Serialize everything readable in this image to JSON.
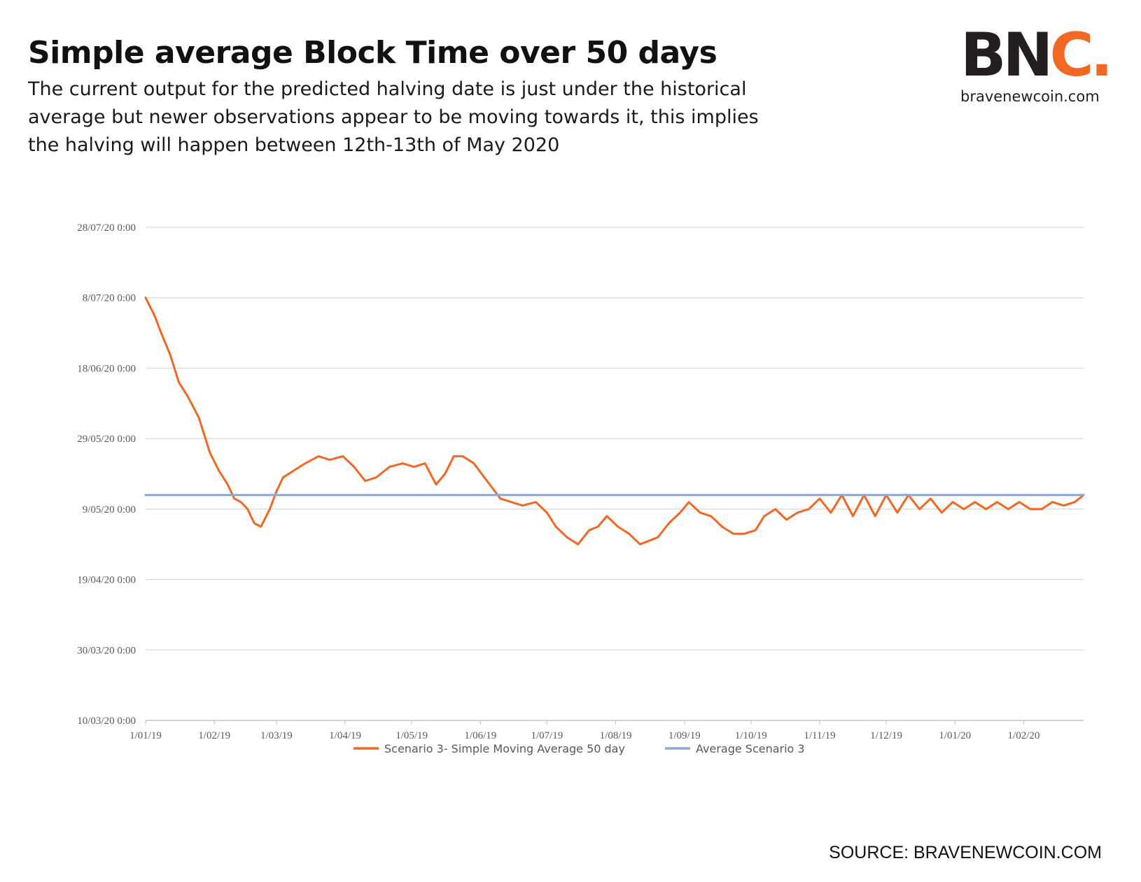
{
  "header": {
    "title": "Simple average Block Time over 50 days",
    "subtitle": "The current output for the predicted halving date is just under the historical average but newer observations appear to be moving towards it, this implies the halving will happen between 12th-13th of May 2020"
  },
  "logo": {
    "mark_dark": "BN",
    "mark_accent": "C.",
    "url": "bravenewcoin.com"
  },
  "source": "SOURCE: BRAVENEWCOIN.COM",
  "chart_data": {
    "type": "line",
    "title": "",
    "xlabel": "",
    "ylabel": "",
    "grid": true,
    "legend_position": "bottom",
    "x_range": [
      "2019-01-01",
      "2020-02-28"
    ],
    "y_range": [
      "2020-03-10",
      "2020-07-28"
    ],
    "x_ticks": [
      "1/01/19",
      "1/02/19",
      "1/03/19",
      "1/04/19",
      "1/05/19",
      "1/06/19",
      "1/07/19",
      "1/08/19",
      "1/09/19",
      "1/10/19",
      "1/11/19",
      "1/12/19",
      "1/01/20",
      "1/02/20"
    ],
    "y_ticks": [
      "10/03/20 0:00",
      "30/03/20 0:00",
      "19/04/20 0:00",
      "9/05/20 0:00",
      "29/05/20 0:00",
      "18/06/20 0:00",
      "8/07/20 0:00",
      "28/07/20 0:00"
    ],
    "series": [
      {
        "name": "Scenario 3- Simple Moving Average 50 day",
        "color": "#f26722",
        "points": [
          [
            "2019-01-01",
            "2020-07-08"
          ],
          [
            "2019-01-05",
            "2020-07-03"
          ],
          [
            "2019-01-08",
            "2020-06-28"
          ],
          [
            "2019-01-12",
            "2020-06-22"
          ],
          [
            "2019-01-16",
            "2020-06-14"
          ],
          [
            "2019-01-20",
            "2020-06-10"
          ],
          [
            "2019-01-25",
            "2020-06-04"
          ],
          [
            "2019-01-30",
            "2020-05-25"
          ],
          [
            "2019-02-03",
            "2020-05-20"
          ],
          [
            "2019-02-07",
            "2020-05-16"
          ],
          [
            "2019-02-10",
            "2020-05-12"
          ],
          [
            "2019-02-13",
            "2020-05-11"
          ],
          [
            "2019-02-16",
            "2020-05-09"
          ],
          [
            "2019-02-19",
            "2020-05-05"
          ],
          [
            "2019-02-22",
            "2020-05-04"
          ],
          [
            "2019-02-26",
            "2020-05-09"
          ],
          [
            "2019-03-01",
            "2020-05-14"
          ],
          [
            "2019-03-04",
            "2020-05-18"
          ],
          [
            "2019-03-09",
            "2020-05-20"
          ],
          [
            "2019-03-14",
            "2020-05-22"
          ],
          [
            "2019-03-20",
            "2020-05-24"
          ],
          [
            "2019-03-25",
            "2020-05-23"
          ],
          [
            "2019-03-31",
            "2020-05-24"
          ],
          [
            "2019-04-05",
            "2020-05-21"
          ],
          [
            "2019-04-10",
            "2020-05-17"
          ],
          [
            "2019-04-15",
            "2020-05-18"
          ],
          [
            "2019-04-21",
            "2020-05-21"
          ],
          [
            "2019-04-27",
            "2020-05-22"
          ],
          [
            "2019-05-02",
            "2020-05-21"
          ],
          [
            "2019-05-07",
            "2020-05-22"
          ],
          [
            "2019-05-12",
            "2020-05-16"
          ],
          [
            "2019-05-16",
            "2020-05-19"
          ],
          [
            "2019-05-20",
            "2020-05-24"
          ],
          [
            "2019-05-24",
            "2020-05-24"
          ],
          [
            "2019-05-29",
            "2020-05-22"
          ],
          [
            "2019-06-04",
            "2020-05-17"
          ],
          [
            "2019-06-10",
            "2020-05-12"
          ],
          [
            "2019-06-15",
            "2020-05-11"
          ],
          [
            "2019-06-20",
            "2020-05-10"
          ],
          [
            "2019-06-26",
            "2020-05-11"
          ],
          [
            "2019-07-01",
            "2020-05-08"
          ],
          [
            "2019-07-05",
            "2020-05-04"
          ],
          [
            "2019-07-10",
            "2020-05-01"
          ],
          [
            "2019-07-15",
            "2020-04-29"
          ],
          [
            "2019-07-20",
            "2020-05-03"
          ],
          [
            "2019-07-24",
            "2020-05-04"
          ],
          [
            "2019-07-28",
            "2020-05-07"
          ],
          [
            "2019-08-02",
            "2020-05-04"
          ],
          [
            "2019-08-07",
            "2020-05-02"
          ],
          [
            "2019-08-12",
            "2020-04-29"
          ],
          [
            "2019-08-16",
            "2020-04-30"
          ],
          [
            "2019-08-20",
            "2020-05-01"
          ],
          [
            "2019-08-25",
            "2020-05-05"
          ],
          [
            "2019-08-30",
            "2020-05-08"
          ],
          [
            "2019-09-03",
            "2020-05-11"
          ],
          [
            "2019-09-08",
            "2020-05-08"
          ],
          [
            "2019-09-13",
            "2020-05-07"
          ],
          [
            "2019-09-18",
            "2020-05-04"
          ],
          [
            "2019-09-23",
            "2020-05-02"
          ],
          [
            "2019-09-28",
            "2020-05-02"
          ],
          [
            "2019-10-03",
            "2020-05-03"
          ],
          [
            "2019-10-07",
            "2020-05-07"
          ],
          [
            "2019-10-12",
            "2020-05-09"
          ],
          [
            "2019-10-17",
            "2020-05-06"
          ],
          [
            "2019-10-22",
            "2020-05-08"
          ],
          [
            "2019-10-27",
            "2020-05-09"
          ],
          [
            "2019-11-01",
            "2020-05-12"
          ],
          [
            "2019-11-06",
            "2020-05-08"
          ],
          [
            "2019-11-11",
            "2020-05-13"
          ],
          [
            "2019-11-16",
            "2020-05-07"
          ],
          [
            "2019-11-21",
            "2020-05-13"
          ],
          [
            "2019-11-26",
            "2020-05-07"
          ],
          [
            "2019-12-01",
            "2020-05-13"
          ],
          [
            "2019-12-06",
            "2020-05-08"
          ],
          [
            "2019-12-11",
            "2020-05-13"
          ],
          [
            "2019-12-16",
            "2020-05-09"
          ],
          [
            "2019-12-21",
            "2020-05-12"
          ],
          [
            "2019-12-26",
            "2020-05-08"
          ],
          [
            "2019-12-31",
            "2020-05-11"
          ],
          [
            "2020-01-05",
            "2020-05-09"
          ],
          [
            "2020-01-10",
            "2020-05-11"
          ],
          [
            "2020-01-15",
            "2020-05-09"
          ],
          [
            "2020-01-20",
            "2020-05-11"
          ],
          [
            "2020-01-25",
            "2020-05-09"
          ],
          [
            "2020-01-30",
            "2020-05-11"
          ],
          [
            "2020-02-04",
            "2020-05-09"
          ],
          [
            "2020-02-09",
            "2020-05-09"
          ],
          [
            "2020-02-14",
            "2020-05-11"
          ],
          [
            "2020-02-19",
            "2020-05-10"
          ],
          [
            "2020-02-24",
            "2020-05-11"
          ],
          [
            "2020-02-28",
            "2020-05-13"
          ]
        ]
      },
      {
        "name": "Average Scenario 3",
        "color": "#8ea6d0",
        "points": [
          [
            "2019-01-01",
            "2020-05-13"
          ],
          [
            "2020-02-28",
            "2020-05-13"
          ]
        ]
      }
    ]
  }
}
